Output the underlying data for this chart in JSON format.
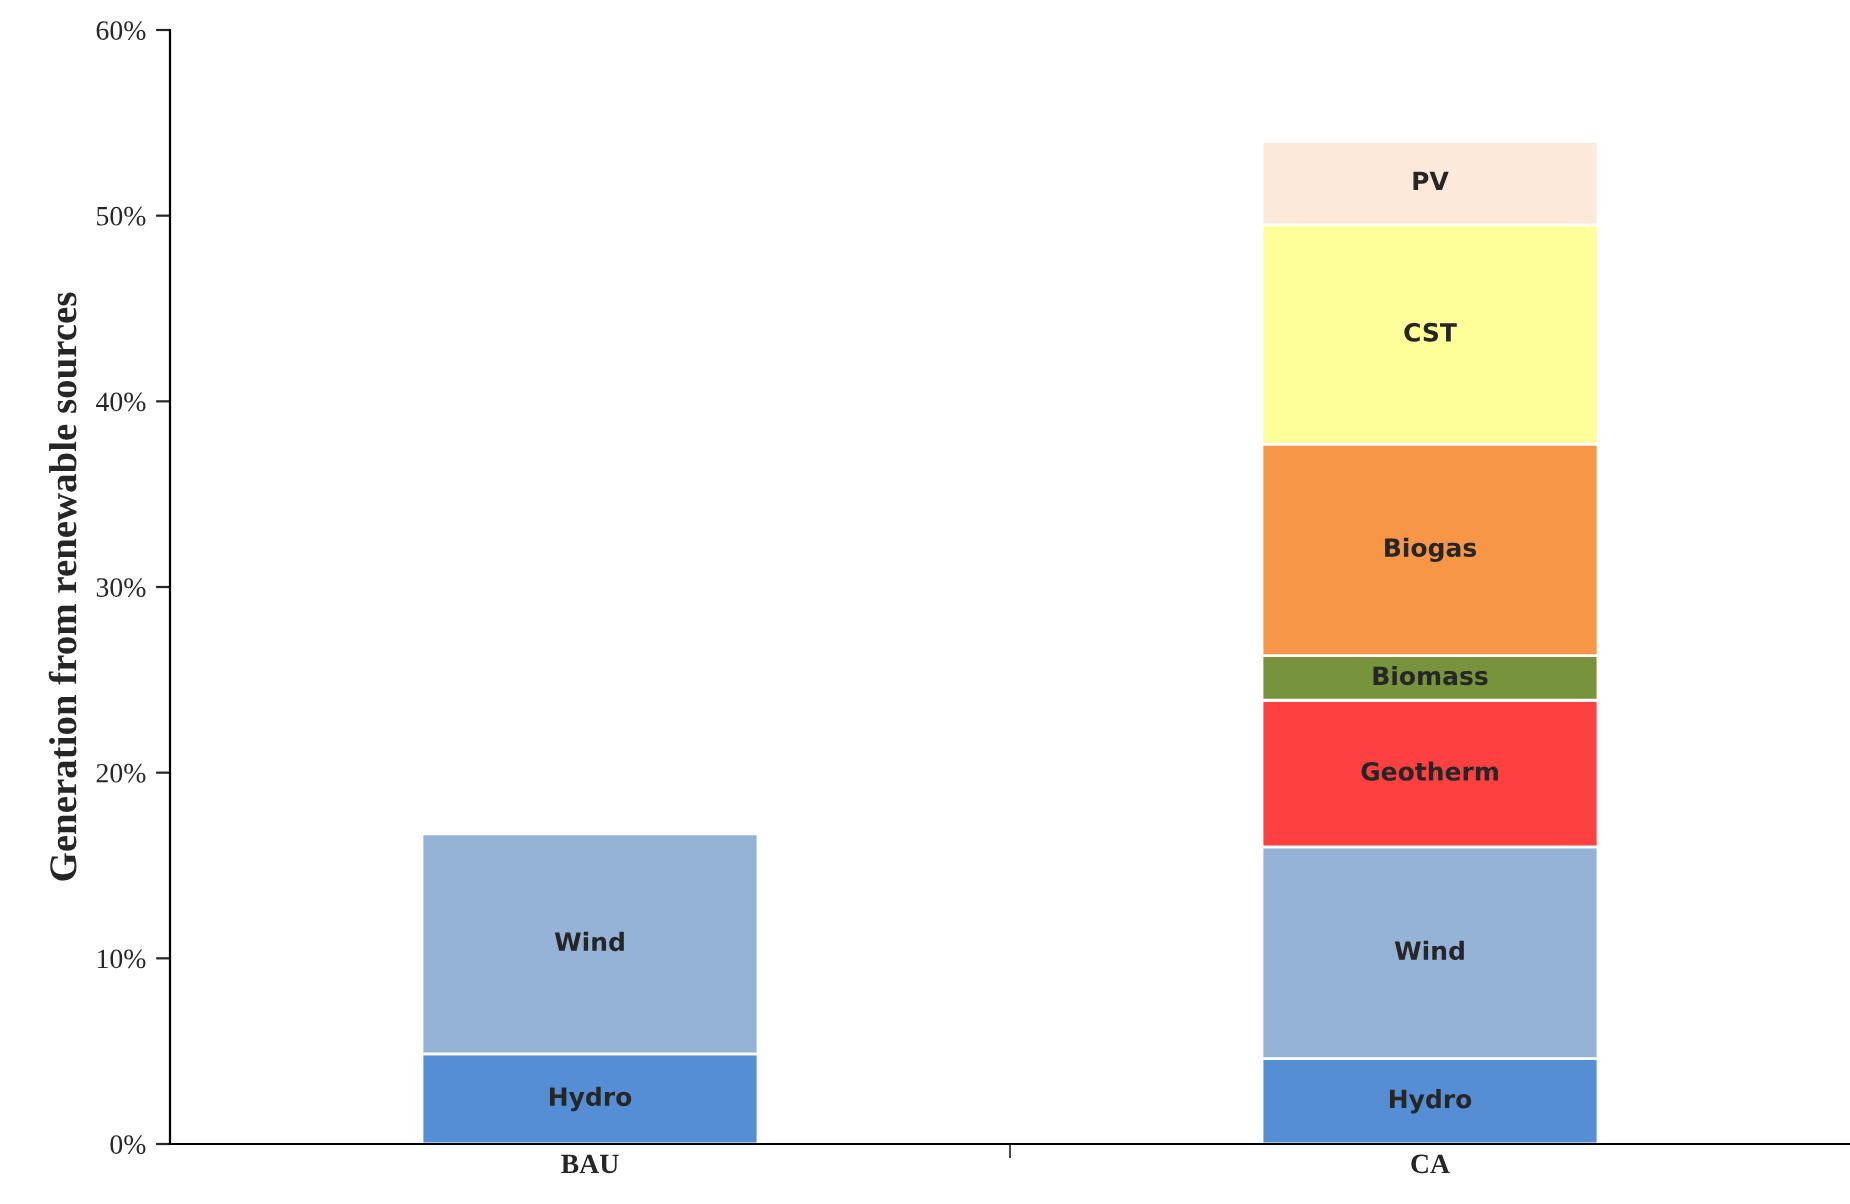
{
  "chart_data": {
    "type": "bar",
    "stacked": true,
    "ylabel": "Generation from renewable sources",
    "categories": [
      "BAU",
      "CA"
    ],
    "series": [
      {
        "name": "Hydro",
        "color": "#558ed5",
        "values": [
          4.85,
          4.6
        ]
      },
      {
        "name": "Wind",
        "color": "#95b3d7",
        "values": [
          11.85,
          11.4
        ]
      },
      {
        "name": "Geotherm",
        "color": "#ff4040",
        "values": [
          null,
          7.9
        ]
      },
      {
        "name": "Biomass",
        "color": "#77933c",
        "values": [
          null,
          2.4
        ]
      },
      {
        "name": "Biogas",
        "color": "#f79646",
        "values": [
          null,
          11.4
        ]
      },
      {
        "name": "CST",
        "color": "#ffff99",
        "values": [
          null,
          11.8
        ]
      },
      {
        "name": "PV",
        "color": "#fde9d9",
        "values": [
          null,
          4.5
        ]
      }
    ],
    "ylim": [
      0,
      60
    ],
    "yticks": [
      {
        "value": 0,
        "label": "0%"
      },
      {
        "value": 10,
        "label": "10%"
      },
      {
        "value": 20,
        "label": "20%"
      },
      {
        "value": 30,
        "label": "30%"
      },
      {
        "value": 40,
        "label": "40%"
      },
      {
        "value": 50,
        "label": "50%"
      },
      {
        "value": 60,
        "label": "60%"
      }
    ],
    "grid": false,
    "legend": false
  }
}
